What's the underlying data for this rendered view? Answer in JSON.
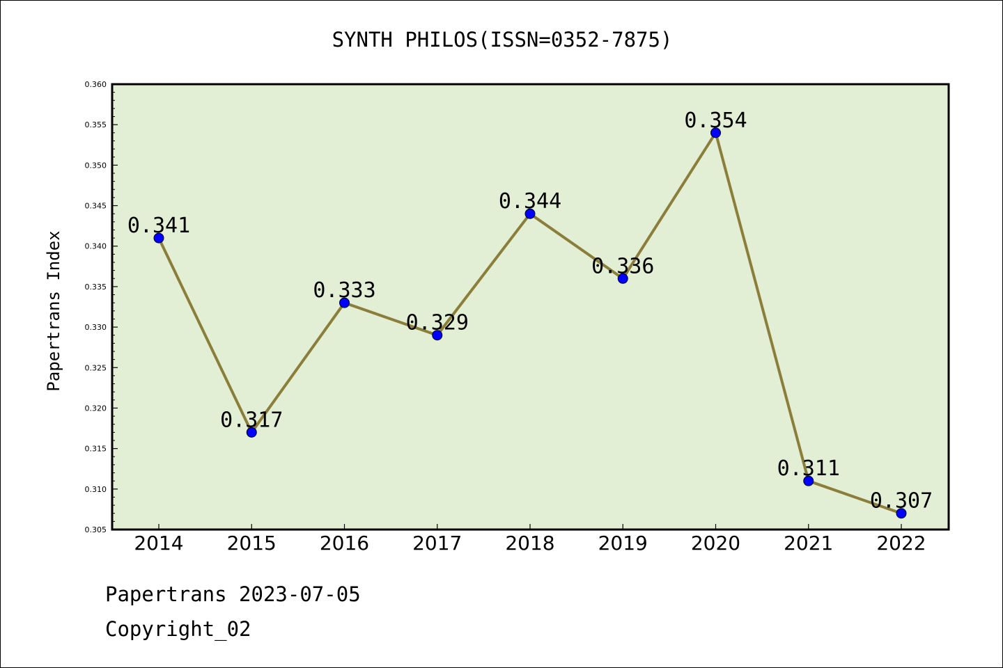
{
  "chart_data": {
    "type": "line",
    "title": "SYNTH PHILOS(ISSN=0352-7875)",
    "xlabel": "",
    "ylabel": "Papertrans Index",
    "categories": [
      "2014",
      "2015",
      "2016",
      "2017",
      "2018",
      "2019",
      "2020",
      "2021",
      "2022"
    ],
    "values": [
      0.341,
      0.317,
      0.333,
      0.329,
      0.344,
      0.336,
      0.354,
      0.311,
      0.307
    ],
    "data_labels": [
      "0.341",
      "0.317",
      "0.333",
      "0.329",
      "0.344",
      "0.336",
      "0.354",
      "0.311",
      "0.307"
    ],
    "ylim": [
      0.305,
      0.36
    ],
    "yticks": [
      "0.305",
      "0.310",
      "0.315",
      "0.320",
      "0.325",
      "0.330",
      "0.335",
      "0.340",
      "0.345",
      "0.350",
      "0.355",
      "0.360"
    ],
    "grid": false,
    "legend": "none",
    "colors": {
      "plot_background": "#e2efd5",
      "line": "#8b7e3a",
      "marker": "#0000ff"
    }
  },
  "footer": {
    "line1": "Papertrans 2023-07-05",
    "line2": "Copyright_02"
  }
}
